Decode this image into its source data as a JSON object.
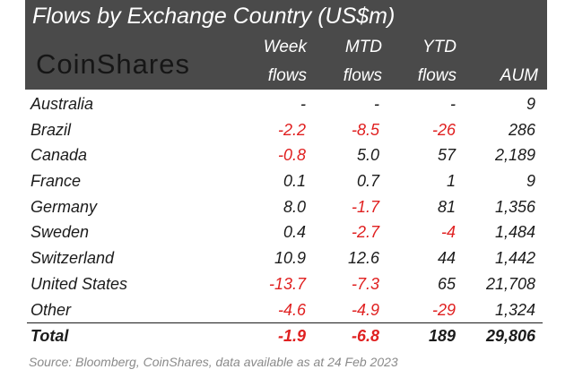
{
  "title": "Flows by Exchange Country (US$m)",
  "logo": "CoinShares",
  "headers": {
    "week": [
      "Week",
      "flows"
    ],
    "mtd": [
      "MTD",
      "flows"
    ],
    "ytd": [
      "YTD",
      "flows"
    ],
    "aum": "AUM"
  },
  "rows": [
    {
      "name": "Australia",
      "week": "-",
      "mtd": "-",
      "ytd": "-",
      "aum": "9"
    },
    {
      "name": "Brazil",
      "week": "-2.2",
      "mtd": "-8.5",
      "ytd": "-26",
      "aum": "286"
    },
    {
      "name": "Canada",
      "week": "-0.8",
      "mtd": "5.0",
      "ytd": "57",
      "aum": "2,189"
    },
    {
      "name": "France",
      "week": "0.1",
      "mtd": "0.7",
      "ytd": "1",
      "aum": "9"
    },
    {
      "name": "Germany",
      "week": "8.0",
      "mtd": "-1.7",
      "ytd": "81",
      "aum": "1,356"
    },
    {
      "name": "Sweden",
      "week": "0.4",
      "mtd": "-2.7",
      "ytd": "-4",
      "aum": "1,484"
    },
    {
      "name": "Switzerland",
      "week": "10.9",
      "mtd": "12.6",
      "ytd": "44",
      "aum": "1,442"
    },
    {
      "name": "United States",
      "week": "-13.7",
      "mtd": "-7.3",
      "ytd": "65",
      "aum": "21,708"
    },
    {
      "name": "Other",
      "week": "-4.6",
      "mtd": "-4.9",
      "ytd": "-29",
      "aum": "1,324"
    }
  ],
  "total": {
    "name": "Total",
    "week": "-1.9",
    "mtd": "-6.8",
    "ytd": "189",
    "aum": "29,806"
  },
  "source": "Source: Bloomberg, CoinShares, data available as at 24 Feb 2023",
  "colors": {
    "header_bg": "#4a4a4a",
    "negative": "#e02020"
  }
}
